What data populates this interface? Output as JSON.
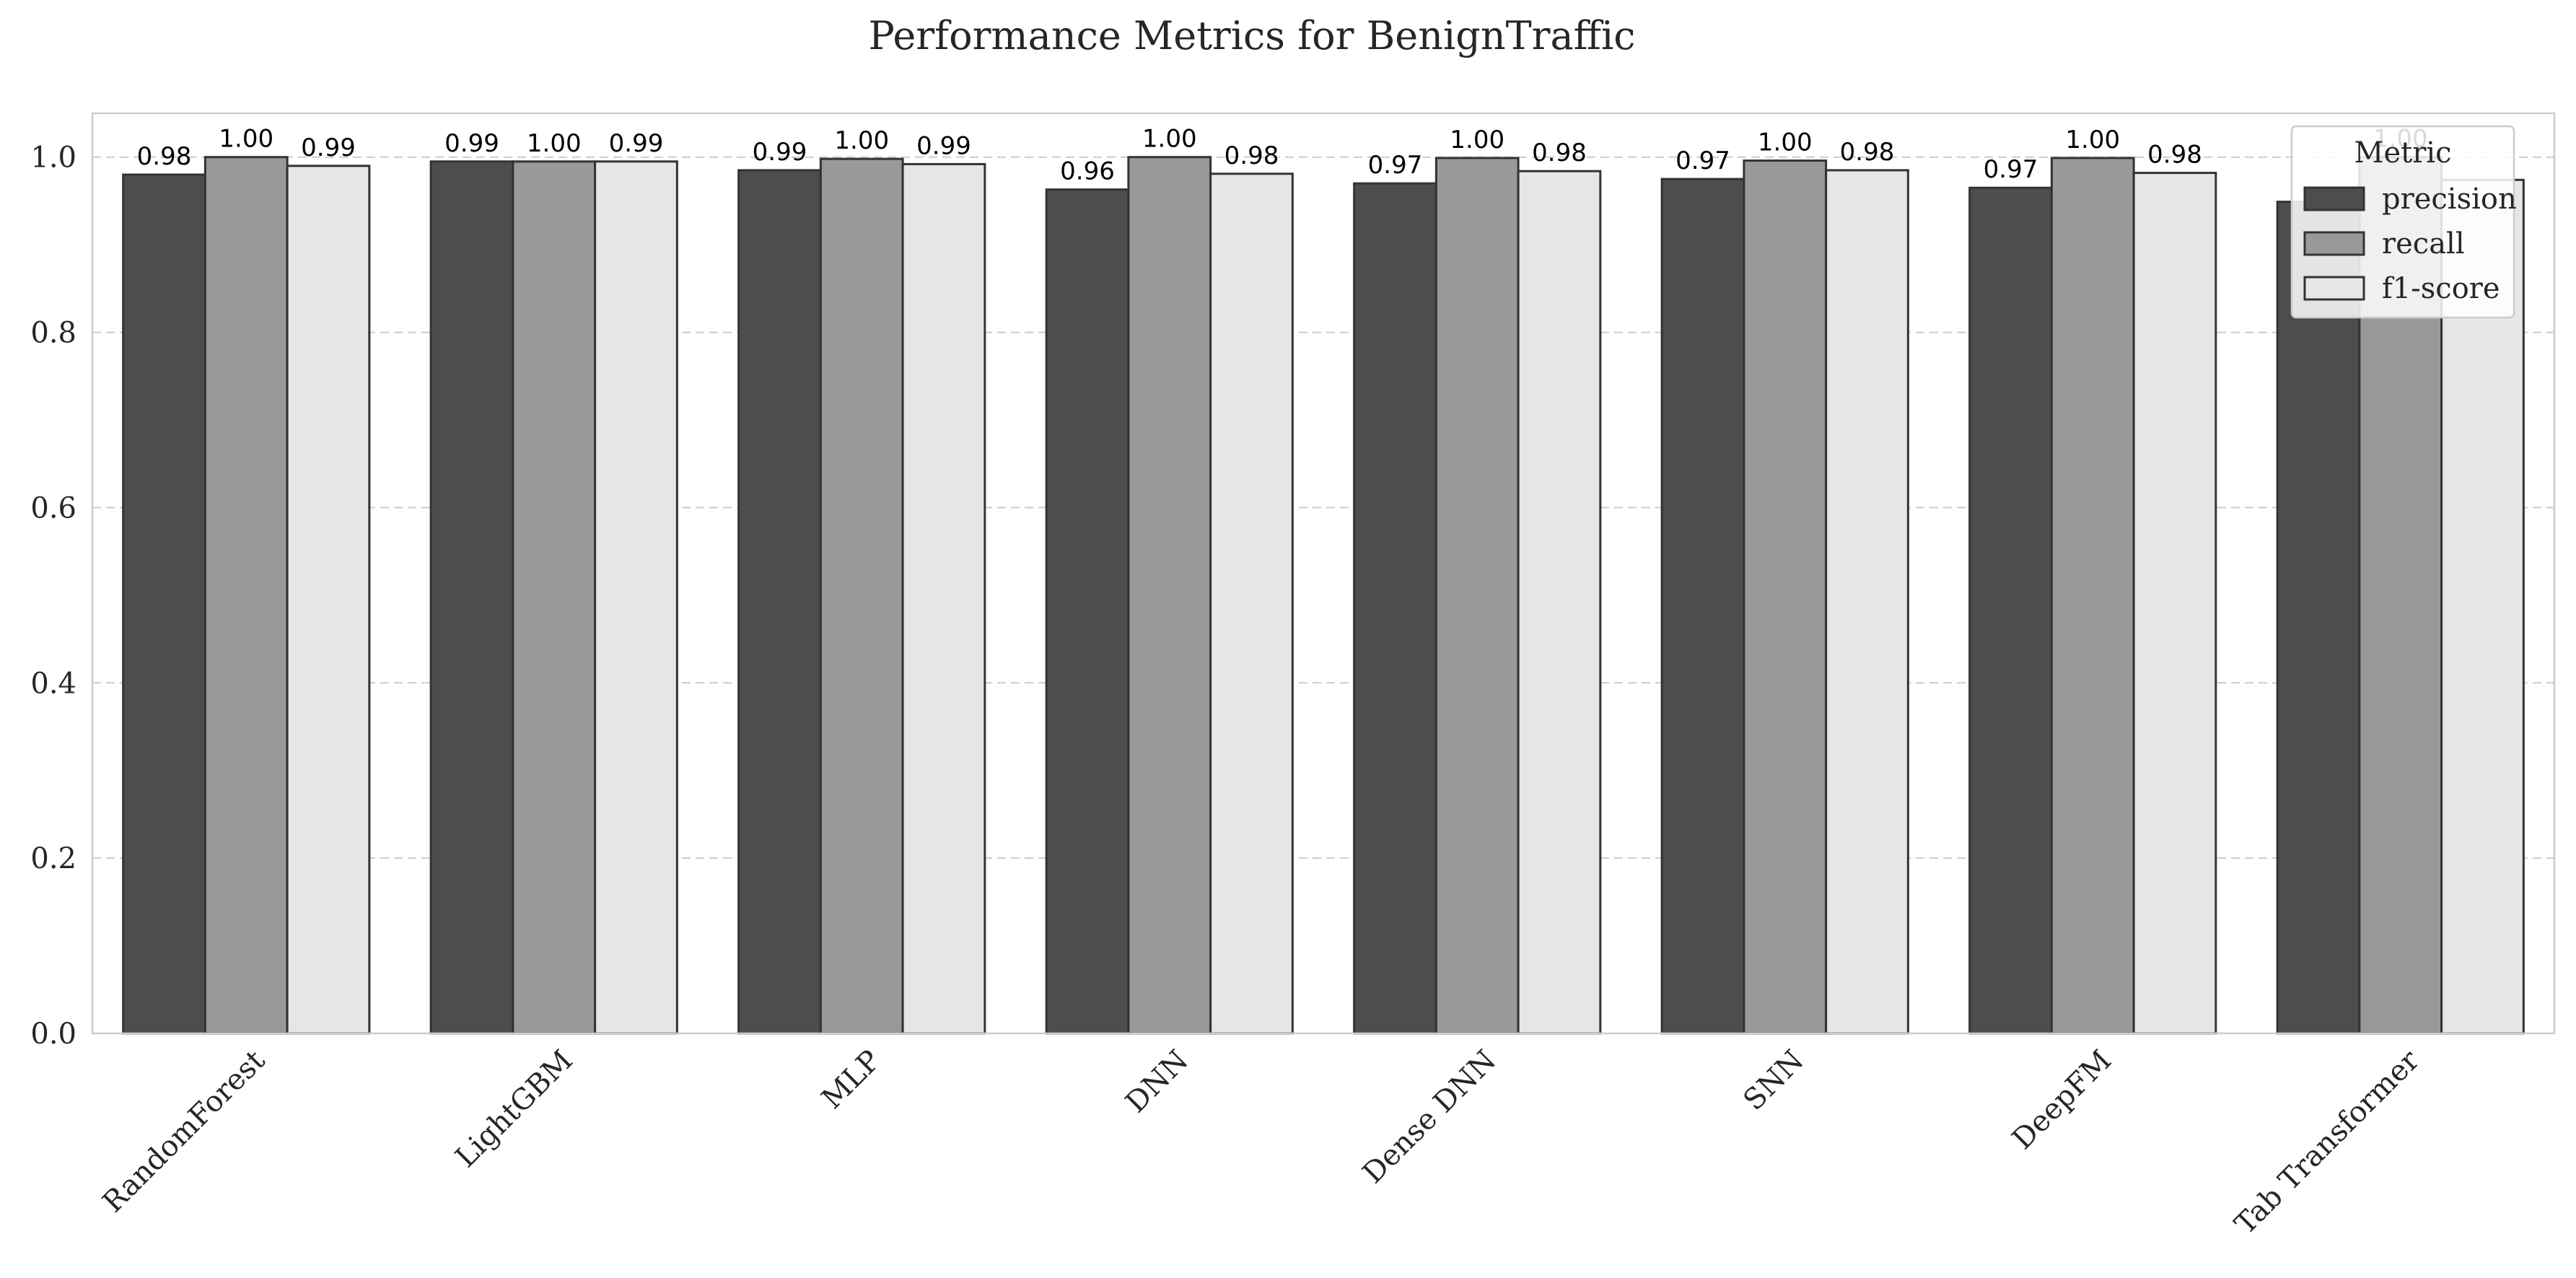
{
  "chart_data": {
    "type": "bar",
    "title": "Performance Metrics for BenignTraffic",
    "xlabel": "",
    "ylabel": "",
    "ylim": [
      0,
      1.05
    ],
    "yticks": [
      "0.0",
      "0.2",
      "0.4",
      "0.6",
      "0.8",
      "1.0"
    ],
    "grid": "horizontal dashed",
    "categories": [
      "RandomForest",
      "LightGBM",
      "MLP",
      "DNN",
      "Dense DNN",
      "SNN",
      "DeepFM",
      "Tab Transformer"
    ],
    "legend": {
      "title": "Metric",
      "placement": "top-right"
    },
    "series": [
      {
        "name": "precision",
        "color": "#4d4d4d",
        "values": [
          0.98,
          0.995,
          0.985,
          0.963,
          0.97,
          0.975,
          0.965,
          0.949
        ],
        "labels": [
          "0.98",
          "0.99",
          "0.99",
          "0.96",
          "0.97",
          "0.97",
          "0.97",
          ""
        ]
      },
      {
        "name": "recall",
        "color": "#999999",
        "values": [
          1.0,
          0.995,
          0.998,
          1.0,
          0.999,
          0.996,
          0.999,
          1.0
        ],
        "labels": [
          "1.00",
          "1.00",
          "1.00",
          "1.00",
          "1.00",
          "1.00",
          "1.00",
          "1.00"
        ]
      },
      {
        "name": "f1-score",
        "color": "#e6e6e6",
        "values": [
          0.99,
          0.995,
          0.992,
          0.981,
          0.984,
          0.985,
          0.982,
          0.974
        ],
        "labels": [
          "0.99",
          "0.99",
          "0.99",
          "0.98",
          "0.98",
          "0.98",
          "0.98",
          ""
        ]
      }
    ],
    "colors": {
      "bar_edge": "#333333",
      "grid": "#cccccc",
      "spine": "#cccccc"
    }
  }
}
